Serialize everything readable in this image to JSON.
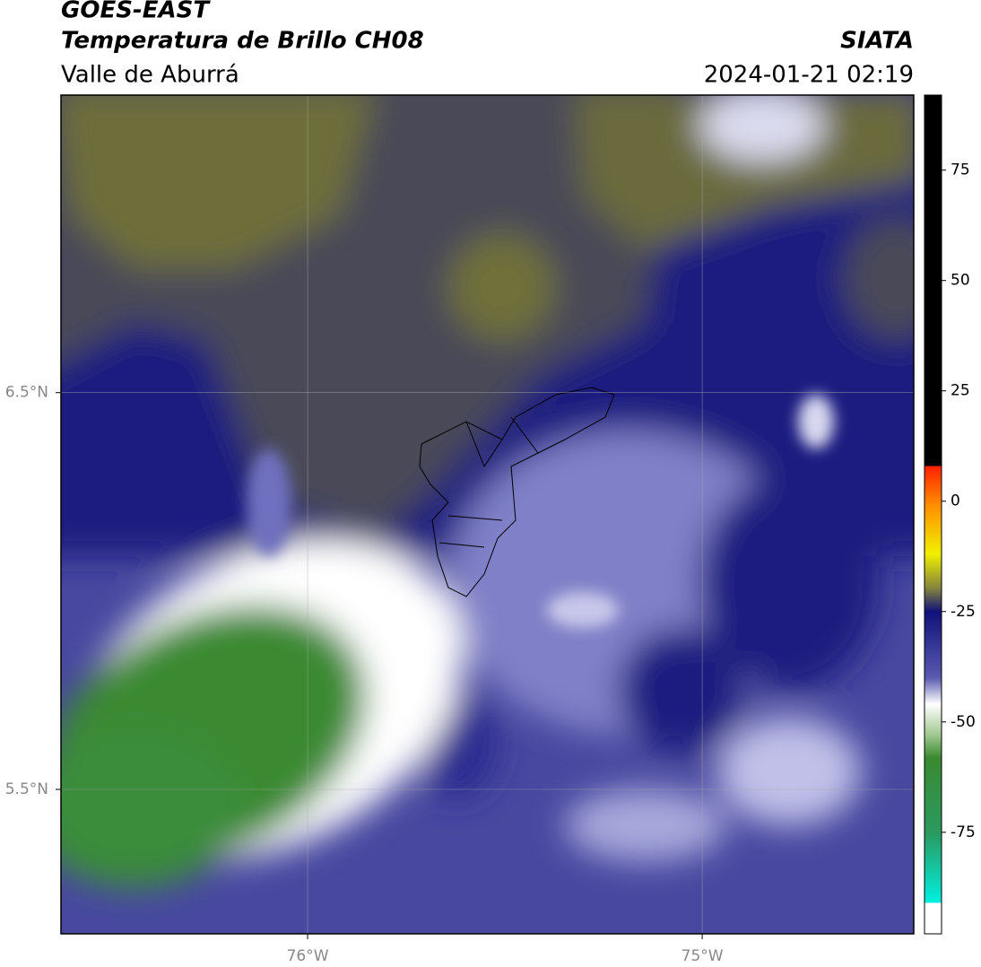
{
  "chart_data": {
    "type": "map",
    "title": "GOES-EAST",
    "subtitle": "Temperatura de Brillo CH08",
    "region": "Valle de Aburrá",
    "source": "SIATA",
    "datetime": "2024-01-21 02:19",
    "xlim": [
      -76.625,
      -74.464
    ],
    "ylim": [
      5.136,
      7.25
    ],
    "xticks": [
      {
        "value": -76,
        "label": "76°W"
      },
      {
        "value": -75,
        "label": "75°W"
      }
    ],
    "yticks": [
      {
        "value": 6.5,
        "label": "6.5°N"
      },
      {
        "value": 5.5,
        "label": "5.5°N"
      }
    ],
    "grid": true,
    "colorbar": {
      "lim": [
        -98,
        92
      ],
      "ticks": [
        75,
        50,
        25,
        0,
        -25,
        -50,
        -75
      ]
    }
  }
}
